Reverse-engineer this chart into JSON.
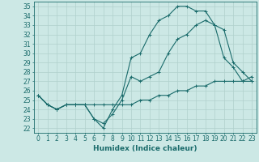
{
  "xlabel": "Humidex (Indice chaleur)",
  "xlim": [
    -0.5,
    23.5
  ],
  "ylim": [
    21.5,
    35.5
  ],
  "xticks": [
    0,
    1,
    2,
    3,
    4,
    5,
    6,
    7,
    8,
    9,
    10,
    11,
    12,
    13,
    14,
    15,
    16,
    17,
    18,
    19,
    20,
    21,
    22,
    23
  ],
  "yticks": [
    22,
    23,
    24,
    25,
    26,
    27,
    28,
    29,
    30,
    31,
    32,
    33,
    34,
    35
  ],
  "bg_color": "#cce8e5",
  "grid_color": "#b0d0cc",
  "line_color": "#1a6b6b",
  "line1_y": [
    25.5,
    24.5,
    24.0,
    24.5,
    24.5,
    24.5,
    23.0,
    22.0,
    24.0,
    25.5,
    29.5,
    30.0,
    32.0,
    33.5,
    34.0,
    35.0,
    35.0,
    34.5,
    34.5,
    33.0,
    32.5,
    29.0,
    28.0,
    27.0
  ],
  "line2_y": [
    25.5,
    24.5,
    24.0,
    24.5,
    24.5,
    24.5,
    23.0,
    22.5,
    23.5,
    25.0,
    27.5,
    27.0,
    27.5,
    28.0,
    30.0,
    31.5,
    32.0,
    33.0,
    33.5,
    33.0,
    29.5,
    28.5,
    27.0,
    27.0
  ],
  "line3_y": [
    25.5,
    24.5,
    24.0,
    24.5,
    24.5,
    24.5,
    24.5,
    24.5,
    24.5,
    24.5,
    24.5,
    25.0,
    25.0,
    25.5,
    25.5,
    26.0,
    26.0,
    26.5,
    26.5,
    27.0,
    27.0,
    27.0,
    27.0,
    27.5
  ],
  "markersize": 3,
  "linewidth": 0.8,
  "font_color": "#1a6b6b",
  "tick_fontsize": 5.5,
  "label_fontsize": 6.5
}
